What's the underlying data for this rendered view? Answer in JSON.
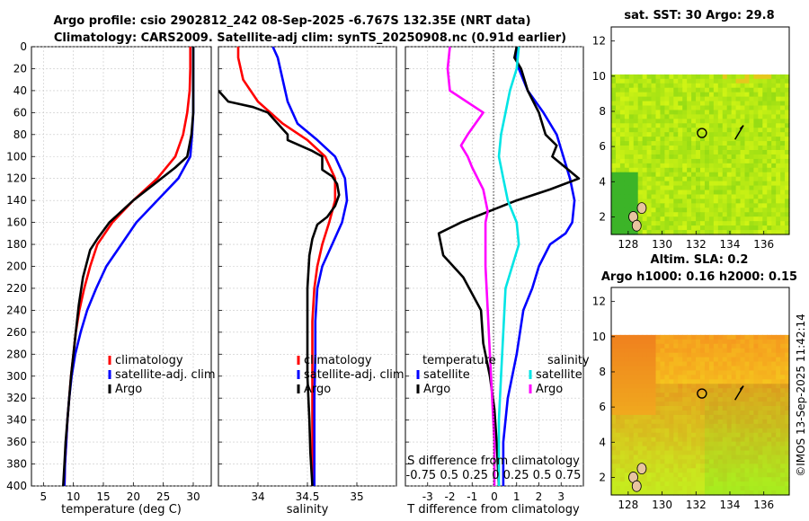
{
  "header": {
    "title_line1": "Argo profile: csio 2902812_242 08-Sep-2025 -6.767S 132.35E (NRT data)",
    "title_line2": "Climatology: CARS2009. Satellite-adj clim: synTS_20250908.nc (0.91d earlier)"
  },
  "watermark": "©IMOS 13-Sep-2025 11:42:14",
  "colors": {
    "climatology": "#ff0000",
    "satellite": "#0000ff",
    "argo": "#000000",
    "cyan": "#00e5e5",
    "magenta": "#ff00ff"
  },
  "depth_axis": {
    "min": 0,
    "max": 400,
    "ticks": [
      0,
      20,
      40,
      60,
      80,
      100,
      120,
      140,
      160,
      180,
      200,
      220,
      240,
      260,
      280,
      300,
      320,
      340,
      360,
      380,
      400
    ]
  },
  "chart_data": [
    {
      "type": "line",
      "id": "temperature",
      "xlabel": "temperature (deg C)",
      "ylabel": "depth",
      "xlim": [
        3,
        33
      ],
      "xticks": [
        5,
        10,
        15,
        20,
        25,
        30
      ],
      "ylim": [
        0,
        400
      ],
      "legend": [
        "climatology",
        "satellite-adj. clim",
        "Argo"
      ],
      "series": [
        {
          "name": "climatology",
          "color": "#ff0000",
          "points": [
            [
              29.5,
              0
            ],
            [
              29.5,
              20
            ],
            [
              29.4,
              40
            ],
            [
              29,
              60
            ],
            [
              28.3,
              80
            ],
            [
              27,
              100
            ],
            [
              24,
              120
            ],
            [
              20,
              140
            ],
            [
              16.5,
              160
            ],
            [
              14,
              180
            ],
            [
              12.8,
              200
            ],
            [
              11.8,
              220
            ],
            [
              11,
              240
            ],
            [
              10.4,
              260
            ],
            [
              10,
              280
            ],
            [
              9.6,
              300
            ],
            [
              9.3,
              320
            ],
            [
              9.0,
              340
            ],
            [
              8.8,
              360
            ],
            [
              8.6,
              380
            ],
            [
              8.5,
              400
            ]
          ]
        },
        {
          "name": "satellite-adj. clim",
          "color": "#0000ff",
          "points": [
            [
              30,
              0
            ],
            [
              30,
              20
            ],
            [
              30,
              40
            ],
            [
              30,
              60
            ],
            [
              29.8,
              80
            ],
            [
              29.5,
              100
            ],
            [
              27.5,
              120
            ],
            [
              24,
              140
            ],
            [
              20.5,
              160
            ],
            [
              18,
              180
            ],
            [
              15.5,
              200
            ],
            [
              13.8,
              220
            ],
            [
              12.3,
              240
            ],
            [
              11.2,
              260
            ],
            [
              10.3,
              280
            ],
            [
              9.7,
              300
            ],
            [
              9.3,
              320
            ],
            [
              9.0,
              340
            ],
            [
              8.8,
              360
            ],
            [
              8.6,
              380
            ],
            [
              8.5,
              400
            ]
          ]
        },
        {
          "name": "Argo",
          "color": "#000000",
          "points": [
            [
              30,
              0
            ],
            [
              30,
              20
            ],
            [
              30,
              40
            ],
            [
              30,
              60
            ],
            [
              29.7,
              80
            ],
            [
              29,
              100
            ],
            [
              27,
              110
            ],
            [
              23.5,
              125
            ],
            [
              20,
              140
            ],
            [
              16,
              160
            ],
            [
              14,
              175
            ],
            [
              12.8,
              185
            ],
            [
              11.6,
              210
            ],
            [
              10.9,
              235
            ],
            [
              10.4,
              260
            ],
            [
              10,
              280
            ],
            [
              9.6,
              300
            ],
            [
              9.3,
              320
            ],
            [
              9,
              340
            ],
            [
              8.7,
              360
            ],
            [
              8.5,
              380
            ],
            [
              8.3,
              400
            ]
          ]
        }
      ]
    },
    {
      "type": "line",
      "id": "salinity",
      "xlabel": "salinity",
      "ylabel": "depth",
      "xlim": [
        33.6,
        35.4
      ],
      "xticks": [
        "34",
        "34.5",
        "35"
      ],
      "ylim": [
        0,
        400
      ],
      "legend": [
        "climatology",
        "satellite-adj. clim",
        "Argo"
      ],
      "series": [
        {
          "name": "climatology",
          "color": "#ff0000",
          "points": [
            [
              33.8,
              0
            ],
            [
              33.8,
              10
            ],
            [
              33.85,
              30
            ],
            [
              34.0,
              50
            ],
            [
              34.25,
              70
            ],
            [
              34.5,
              85
            ],
            [
              34.68,
              100
            ],
            [
              34.78,
              120
            ],
            [
              34.78,
              140
            ],
            [
              34.72,
              160
            ],
            [
              34.65,
              180
            ],
            [
              34.6,
              200
            ],
            [
              34.57,
              220
            ],
            [
              34.55,
              250
            ],
            [
              34.55,
              280
            ],
            [
              34.55,
              320
            ],
            [
              34.55,
              360
            ],
            [
              34.55,
              400
            ]
          ]
        },
        {
          "name": "satellite-adj. clim",
          "color": "#0000ff",
          "points": [
            [
              34.15,
              0
            ],
            [
              34.2,
              10
            ],
            [
              34.25,
              30
            ],
            [
              34.3,
              50
            ],
            [
              34.4,
              70
            ],
            [
              34.6,
              85
            ],
            [
              34.78,
              100
            ],
            [
              34.88,
              120
            ],
            [
              34.9,
              140
            ],
            [
              34.85,
              160
            ],
            [
              34.75,
              180
            ],
            [
              34.65,
              200
            ],
            [
              34.6,
              220
            ],
            [
              34.58,
              250
            ],
            [
              34.58,
              280
            ],
            [
              34.57,
              320
            ],
            [
              34.57,
              360
            ],
            [
              34.57,
              400
            ]
          ]
        },
        {
          "name": "Argo",
          "color": "#000000",
          "points": [
            [
              33.6,
              40
            ],
            [
              33.7,
              50
            ],
            [
              33.95,
              55
            ],
            [
              34.1,
              60
            ],
            [
              34.2,
              70
            ],
            [
              34.25,
              75
            ],
            [
              34.3,
              80
            ],
            [
              34.3,
              85
            ],
            [
              34.55,
              95
            ],
            [
              34.65,
              100
            ],
            [
              34.65,
              112
            ],
            [
              34.75,
              118
            ],
            [
              34.8,
              125
            ],
            [
              34.82,
              135
            ],
            [
              34.78,
              145
            ],
            [
              34.7,
              155
            ],
            [
              34.6,
              162
            ],
            [
              34.55,
              175
            ],
            [
              34.52,
              190
            ],
            [
              34.5,
              220
            ],
            [
              34.5,
              260
            ],
            [
              34.5,
              300
            ],
            [
              34.52,
              340
            ],
            [
              34.53,
              370
            ],
            [
              34.55,
              400
            ]
          ]
        }
      ]
    },
    {
      "type": "line",
      "id": "difference",
      "xlabel": "T difference from climatology",
      "xlabel_top": "S difference from climatology",
      "xlim": [
        -4,
        4
      ],
      "xticks": [
        "-3",
        "-2",
        "-1",
        "0",
        "1",
        "2",
        "3"
      ],
      "top_ticks_text": "-0.75 0.5 0.25 0 0.25 0.5 0.75",
      "ylim": [
        0,
        400
      ],
      "legend_left_title": "temperature",
      "legend_right_title": "salinity",
      "legend": [
        "satellite",
        "Argo",
        "satellite",
        "Argo"
      ],
      "series": [
        {
          "name": "T satellite",
          "color": "#0000ff",
          "points": [
            [
              1.0,
              0
            ],
            [
              1.0,
              10
            ],
            [
              1.1,
              20
            ],
            [
              1.5,
              40
            ],
            [
              2.2,
              60
            ],
            [
              2.8,
              80
            ],
            [
              3.1,
              100
            ],
            [
              3.4,
              120
            ],
            [
              3.6,
              140
            ],
            [
              3.5,
              160
            ],
            [
              3.2,
              170
            ],
            [
              2.5,
              180
            ],
            [
              2.0,
              200
            ],
            [
              1.7,
              220
            ],
            [
              1.3,
              240
            ],
            [
              1.0,
              280
            ],
            [
              0.6,
              320
            ],
            [
              0.4,
              360
            ],
            [
              0.4,
              400
            ]
          ]
        },
        {
          "name": "T Argo",
          "color": "#000000",
          "points": [
            [
              1.0,
              0
            ],
            [
              0.9,
              10
            ],
            [
              1.2,
              20
            ],
            [
              1.5,
              40
            ],
            [
              2.0,
              60
            ],
            [
              2.3,
              80
            ],
            [
              2.8,
              90
            ],
            [
              2.6,
              100
            ],
            [
              3.2,
              110
            ],
            [
              3.8,
              120
            ],
            [
              2.5,
              130
            ],
            [
              1.0,
              140
            ],
            [
              -1.5,
              160
            ],
            [
              -2.5,
              170
            ],
            [
              -2.3,
              190
            ],
            [
              -1.4,
              210
            ],
            [
              -0.6,
              240
            ],
            [
              -0.5,
              270
            ],
            [
              -0.2,
              300
            ],
            [
              0,
              330
            ],
            [
              0.1,
              360
            ],
            [
              0.2,
              400
            ]
          ]
        },
        {
          "name": "S satellite",
          "color": "#00e5e5",
          "points": [
            [
              1.1,
              0
            ],
            [
              1.0,
              20
            ],
            [
              0.7,
              40
            ],
            [
              0.5,
              60
            ],
            [
              0.3,
              80
            ],
            [
              0.2,
              100
            ],
            [
              0.4,
              120
            ],
            [
              0.6,
              140
            ],
            [
              1.0,
              160
            ],
            [
              1.1,
              180
            ],
            [
              0.8,
              200
            ],
            [
              0.5,
              220
            ],
            [
              0.4,
              260
            ],
            [
              0.3,
              300
            ],
            [
              0.2,
              340
            ],
            [
              0.2,
              400
            ]
          ]
        },
        {
          "name": "S Argo",
          "color": "#ff00ff",
          "points": [
            [
              -2.0,
              0
            ],
            [
              -2.1,
              20
            ],
            [
              -2.0,
              40
            ],
            [
              -0.5,
              60
            ],
            [
              -1.2,
              80
            ],
            [
              -1.5,
              90
            ],
            [
              -1.2,
              100
            ],
            [
              -1.0,
              110
            ],
            [
              -0.5,
              130
            ],
            [
              -0.3,
              150
            ],
            [
              -0.4,
              160
            ],
            [
              -0.4,
              200
            ],
            [
              -0.3,
              240
            ],
            [
              -0.2,
              280
            ],
            [
              -0.1,
              320
            ],
            [
              0,
              360
            ],
            [
              0,
              400
            ]
          ]
        }
      ]
    },
    {
      "type": "heatmap",
      "id": "sst_map",
      "title": "sat. SST: 30 Argo: 29.8",
      "xticks": [
        "128",
        "130",
        "132",
        "134",
        "136"
      ],
      "yticks": [
        "2",
        "4",
        "6",
        "8",
        "10",
        "12"
      ],
      "xlim": [
        127,
        137.5
      ],
      "ylim": [
        1,
        12.8
      ],
      "data_ylim": [
        1,
        10.1
      ],
      "float_position": [
        132.35,
        6.77
      ]
    },
    {
      "type": "heatmap",
      "id": "sla_map",
      "title": "Altim. SLA: 0.2",
      "subtitle": "Argo h1000: 0.16 h2000: 0.15",
      "xticks": [
        "128",
        "130",
        "132",
        "134",
        "136"
      ],
      "yticks": [
        "2",
        "4",
        "6",
        "8",
        "10",
        "12"
      ],
      "xlim": [
        127,
        137.5
      ],
      "ylim": [
        1,
        12.8
      ],
      "data_ylim": [
        1,
        10.1
      ],
      "float_position": [
        132.35,
        6.77
      ]
    }
  ]
}
